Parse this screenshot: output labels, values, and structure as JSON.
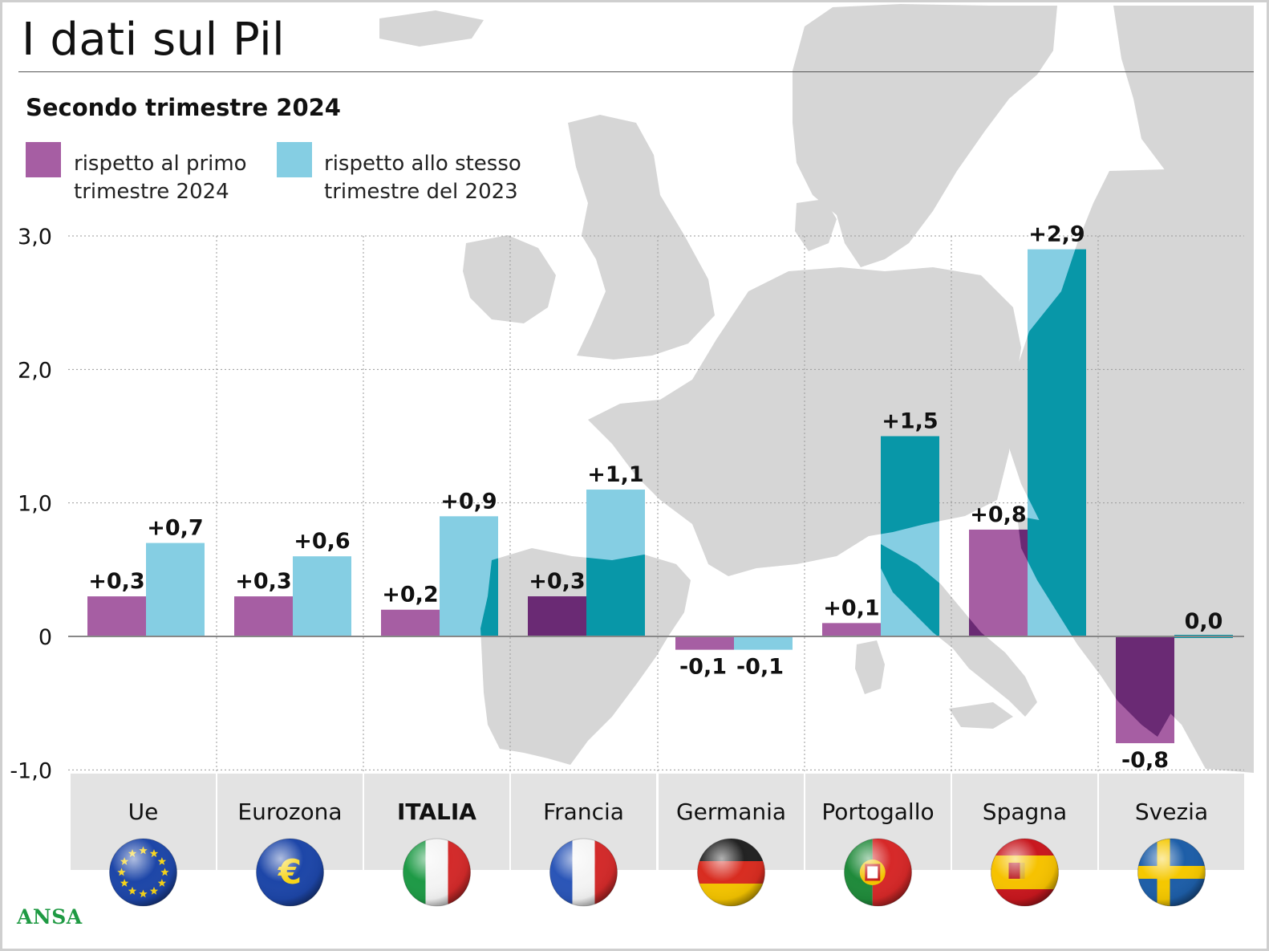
{
  "title": "I dati sul Pil",
  "subtitle": "Secondo trimestre 2024",
  "footer_logo": "ANSA",
  "colors": {
    "series1": "#a65ea3",
    "series1_over_map": "#6a2a74",
    "series2": "#85cee3",
    "series2_over_map": "#0897a8",
    "map": "#d6d6d6",
    "grid": "#9a9a9a",
    "zero_line": "#888888",
    "category_box": "#e3e3e3"
  },
  "chart_data": {
    "type": "bar",
    "title": "I dati sul Pil",
    "subtitle": "Secondo trimestre 2024",
    "xlabel": "",
    "ylabel": "",
    "ylim": [
      -1.0,
      3.0
    ],
    "yticks": [
      3.0,
      2.0,
      1.0,
      0,
      -1.0
    ],
    "ytick_labels": [
      "3,0",
      "2,0",
      "1,0",
      "0",
      "-1,0"
    ],
    "grid": true,
    "legend_position": "top-left",
    "categories": [
      "Ue",
      "Eurozona",
      "ITALIA",
      "Francia",
      "Germania",
      "Portogallo",
      "Spagna",
      "Svezia"
    ],
    "category_emphasis": [
      false,
      false,
      true,
      false,
      false,
      false,
      false,
      false
    ],
    "category_icons": [
      "eu-flag-icon",
      "euro-icon",
      "italy-flag-icon",
      "france-flag-icon",
      "germany-flag-icon",
      "portugal-flag-icon",
      "spain-flag-icon",
      "sweden-flag-icon"
    ],
    "series": [
      {
        "name": "rispetto al primo\ntrimestre 2024",
        "values": [
          0.3,
          0.3,
          0.2,
          0.3,
          -0.1,
          0.1,
          0.8,
          -0.8
        ],
        "labels": [
          "+0,3",
          "+0,3",
          "+0,2",
          "+0,3",
          "-0,1",
          "+0,1",
          "+0,8",
          "-0,8"
        ]
      },
      {
        "name": "rispetto allo stesso\ntrimestre del 2023",
        "values": [
          0.7,
          0.6,
          0.9,
          1.1,
          -0.1,
          1.5,
          2.9,
          0.0
        ],
        "labels": [
          "+0,7",
          "+0,6",
          "+0,9",
          "+1,1",
          "-0,1",
          "+1,5",
          "+2,9",
          "0,0"
        ]
      }
    ]
  }
}
